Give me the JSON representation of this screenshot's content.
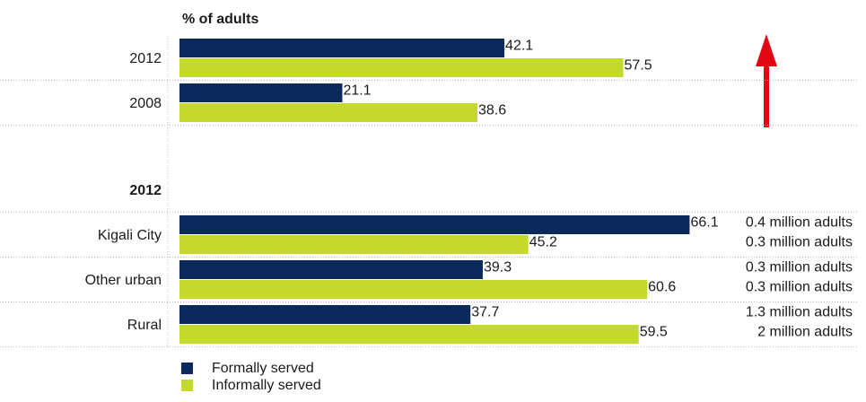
{
  "chart_data": [
    {
      "type": "bar",
      "orientation": "horizontal",
      "x_label": "% of adults",
      "categories": [
        "2012",
        "2008"
      ],
      "series": [
        {
          "name": "Formally served",
          "color": "#0b2a5c",
          "values": [
            42.1,
            21.1
          ]
        },
        {
          "name": "Informally served",
          "color": "#c5d92d",
          "values": [
            57.5,
            38.6
          ]
        }
      ],
      "xlim": [
        0,
        88
      ]
    },
    {
      "type": "bar",
      "orientation": "horizontal",
      "title": "2012",
      "categories": [
        "Kigali City",
        "Other urban",
        "Rural"
      ],
      "series": [
        {
          "color": "#0b2a5c",
          "values": [
            66.1,
            39.3,
            37.7
          ],
          "notes": [
            "0.4 million adults",
            "0.3 million adults",
            "1.3 million adults"
          ]
        },
        {
          "color": "#c5d92d",
          "values": [
            45.2,
            60.6,
            59.5
          ],
          "notes": [
            "0.3 million adults",
            "0.3 million adults",
            "2 million adults"
          ]
        }
      ],
      "xlim": [
        0,
        88
      ]
    }
  ]
}
